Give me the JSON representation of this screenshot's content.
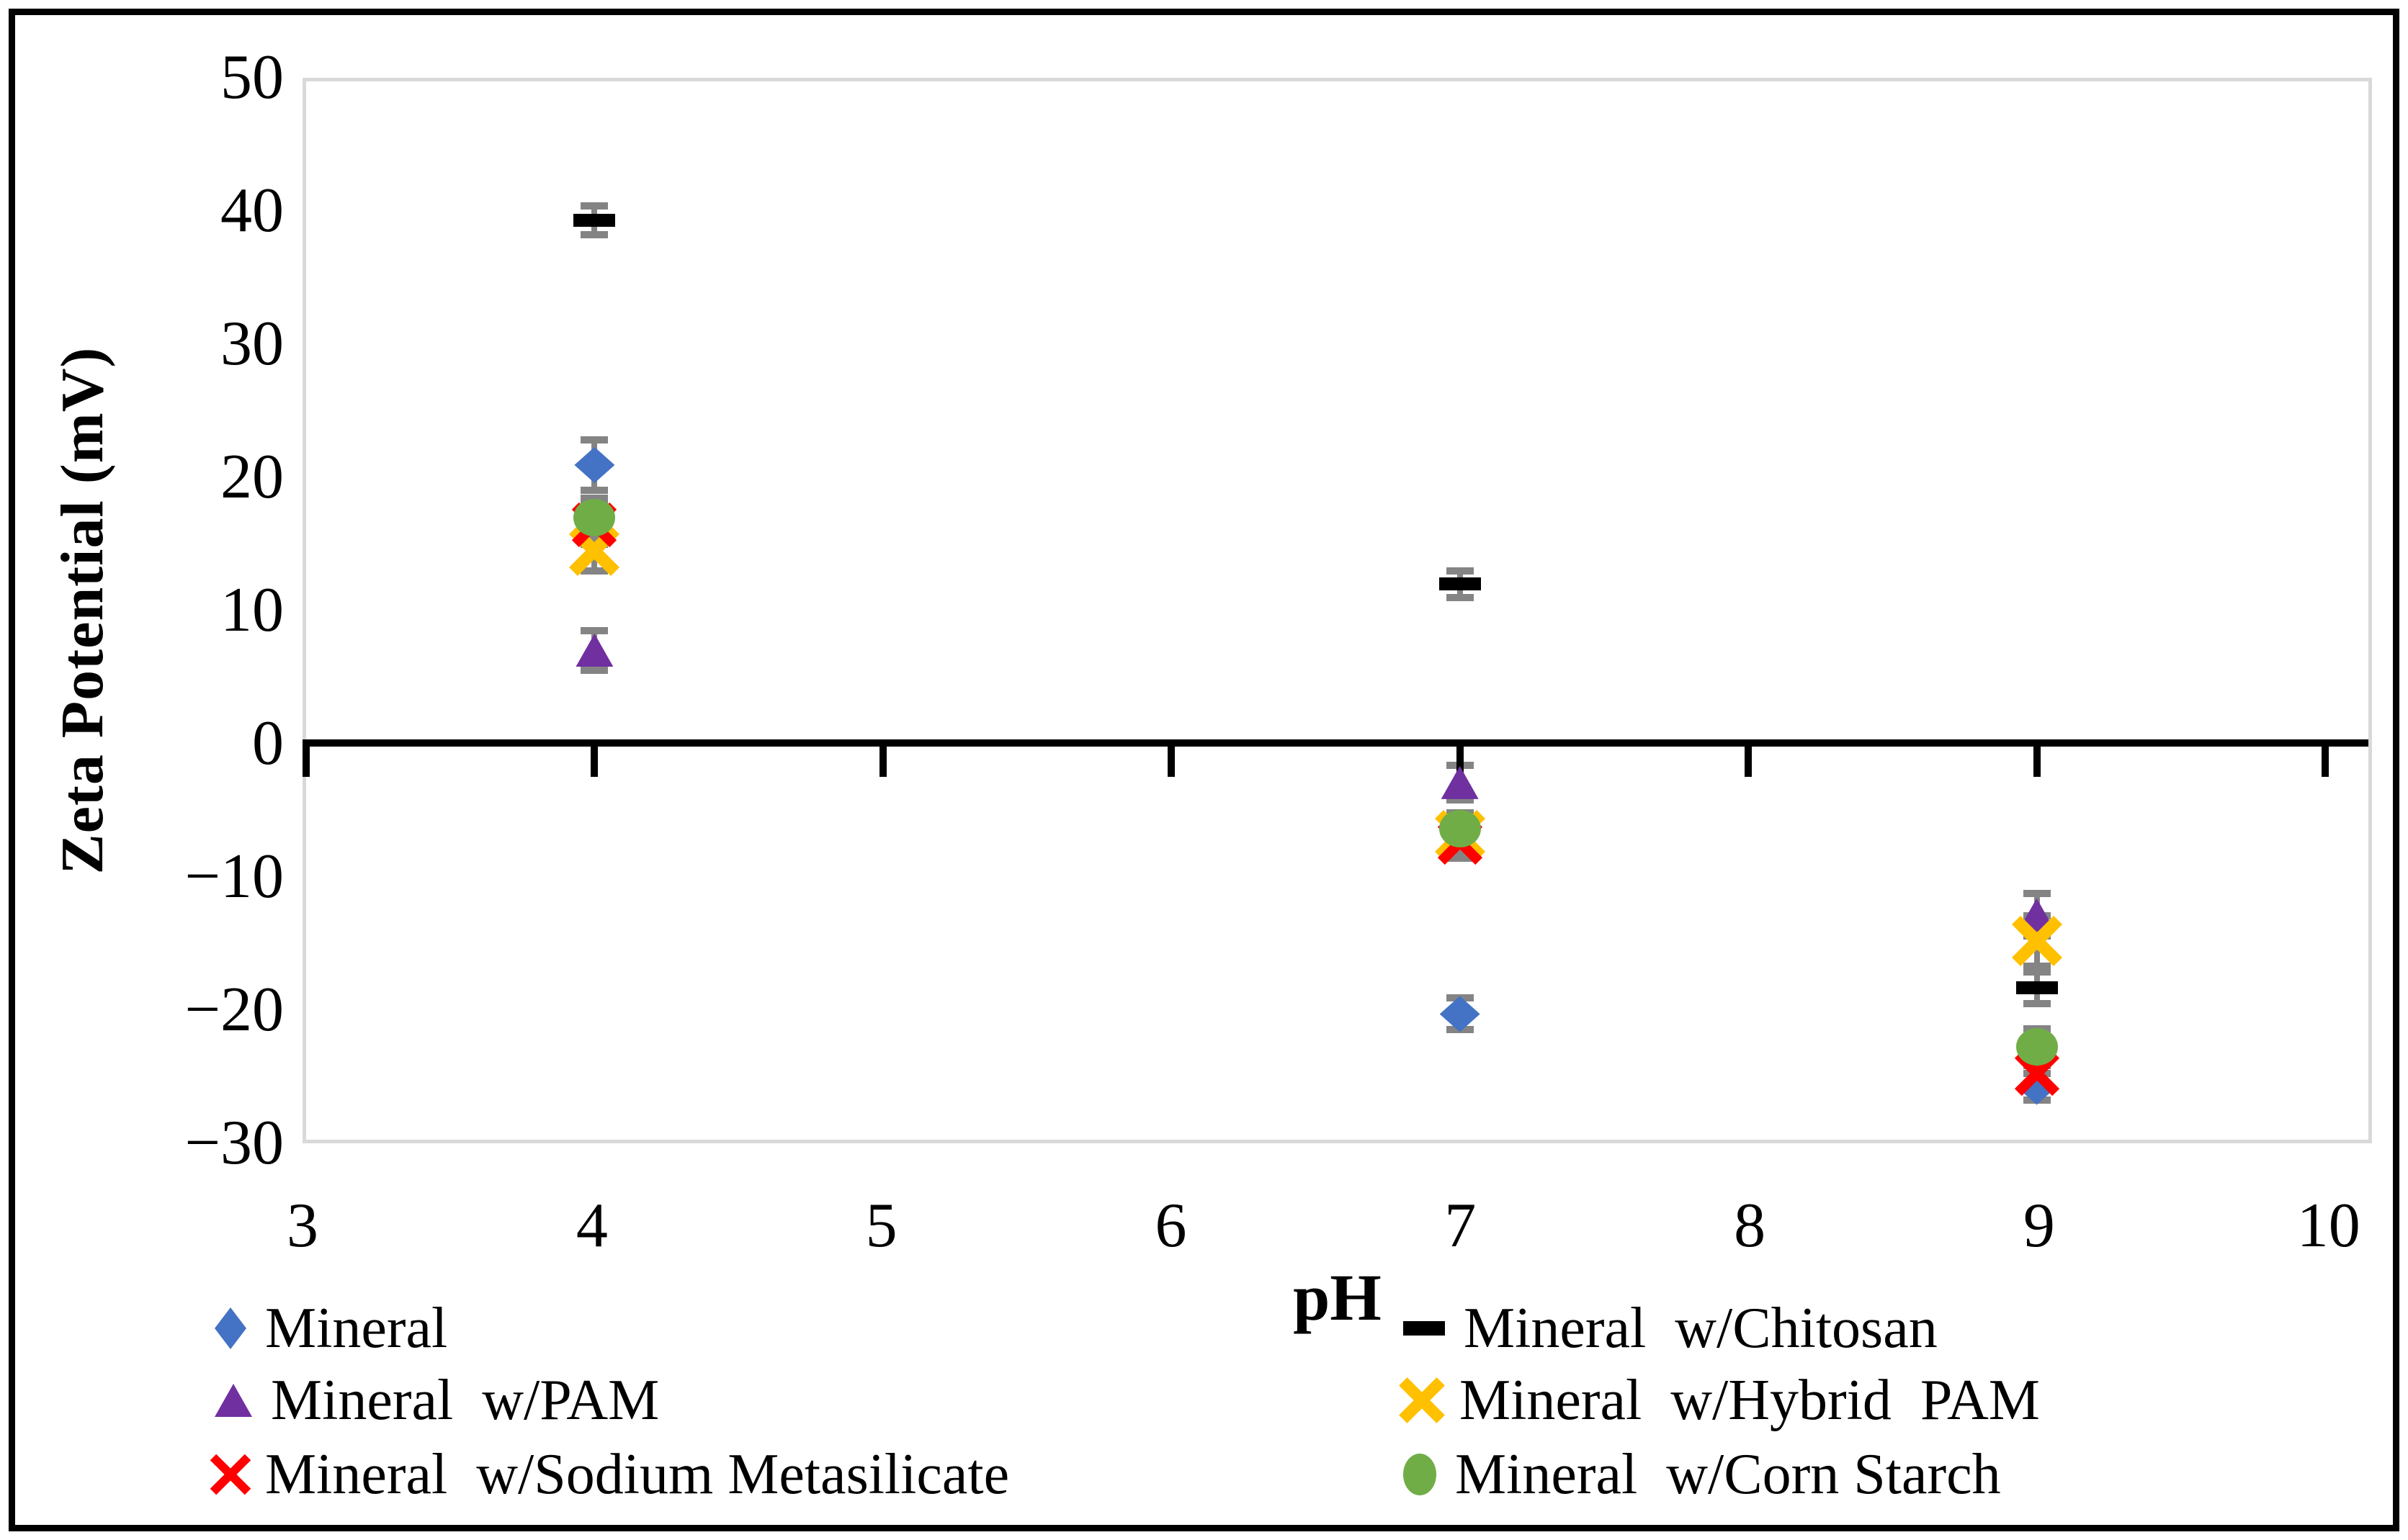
{
  "chart_data": {
    "type": "scatter",
    "title": "",
    "xlabel": "pH",
    "ylabel": "Zeta Potential (mV)",
    "xlim": [
      3,
      10.15
    ],
    "xticks": [
      3,
      4,
      5,
      6,
      7,
      8,
      9,
      10
    ],
    "ylim": [
      -30,
      50
    ],
    "yticks": [
      50,
      40,
      30,
      20,
      10,
      0,
      -10,
      -20,
      -30
    ],
    "ytick_labels": [
      "50",
      "40",
      "30",
      "20",
      "10",
      "0",
      "−10",
      "−20",
      "−30"
    ],
    "grid": false,
    "legend_position": "bottom, two columns",
    "plot_border_color": "#D9D9D9",
    "axis_line_color": "#000000",
    "error_bar_color": "#848484",
    "series": [
      {
        "name": "Mineral",
        "marker": "diamond",
        "color": "#4472C4",
        "points": [
          {
            "x": 4,
            "y": 21,
            "err": 1.9
          },
          {
            "x": 7,
            "y": -20.5,
            "err": 1.2
          },
          {
            "x": 9,
            "y": -26,
            "err": 1.0
          }
        ]
      },
      {
        "name": "Mineral  w/Chitosan",
        "marker": "dash",
        "color": "#000000",
        "points": [
          {
            "x": 4,
            "y": 39.5,
            "err": 1.1
          },
          {
            "x": 7,
            "y": 12,
            "err": 1.0
          },
          {
            "x": 9,
            "y": -18.5,
            "err": 1.2
          }
        ]
      },
      {
        "name": "Mineral  w/PAM",
        "marker": "triangle",
        "color": "#7030A0",
        "points": [
          {
            "x": 4,
            "y": 7,
            "err": 1.5
          },
          {
            "x": 7,
            "y": -3,
            "err": 1.3
          },
          {
            "x": 9,
            "y": -13,
            "err": 1.6
          }
        ]
      },
      {
        "name": "Mineral  w/Hybrid  PAM",
        "marker": "x-thick",
        "color": "#FFC000",
        "points": [
          {
            "x": 4,
            "y": 14.5,
            "err": 1.5
          },
          {
            "x": 7,
            "y": -7,
            "err": 1.2
          },
          {
            "x": 9,
            "y": -15,
            "err": 1.9
          }
        ]
      },
      {
        "name": "Mineral  w/Sodium Metasilicate",
        "marker": "x-thin",
        "color": "#FF0000",
        "points": [
          {
            "x": 4,
            "y": 16.5,
            "err": 1.5
          },
          {
            "x": 7,
            "y": -7.5,
            "err": 1.2
          },
          {
            "x": 9,
            "y": -25,
            "err": 1.0
          }
        ]
      },
      {
        "name": "Mineral  w/Corn Starch",
        "marker": "circle",
        "color": "#70AD47",
        "points": [
          {
            "x": 4,
            "y": 17,
            "err": 1.5
          },
          {
            "x": 7,
            "y": -6.5,
            "err": 1.2
          },
          {
            "x": 9,
            "y": -23,
            "err": 1.4
          }
        ]
      }
    ],
    "legend_columns": [
      [
        0,
        2,
        4
      ],
      [
        1,
        3,
        5
      ]
    ]
  }
}
